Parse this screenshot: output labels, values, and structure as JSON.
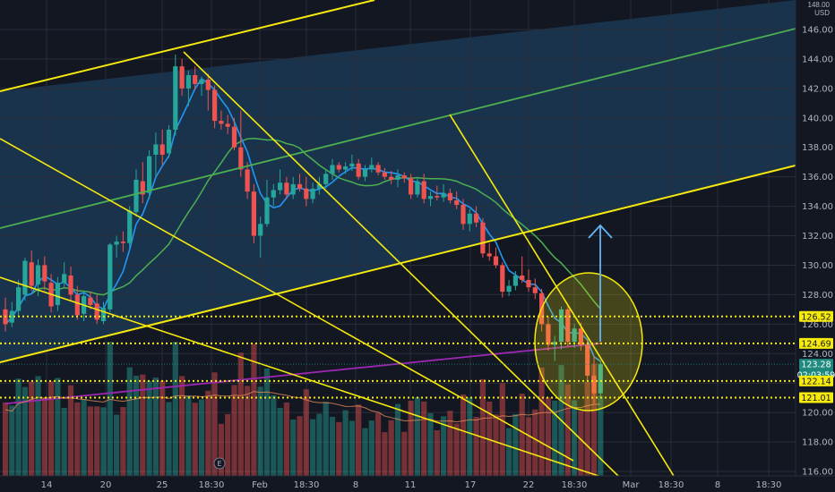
{
  "header": {
    "scale_label": "148.00",
    "currency": "USD"
  },
  "price_tags": [
    {
      "label": "126.52",
      "value": 126.52,
      "bg": "#f5e90d",
      "fg": "#131722"
    },
    {
      "label": "124.69",
      "value": 124.69,
      "bg": "#f5e90d",
      "fg": "#131722"
    },
    {
      "label": "123.28",
      "value": 123.28,
      "bg": "#1f8a80",
      "fg": "#ffffff"
    },
    {
      "label": "02:03:59",
      "value": 122.55,
      "bg": "#1f8a80",
      "fg": "#ffffff"
    },
    {
      "label": "122.14",
      "value": 122.14,
      "bg": "#f5e90d",
      "fg": "#131722"
    },
    {
      "label": "121.01",
      "value": 121.01,
      "bg": "#f5e90d",
      "fg": "#131722"
    }
  ],
  "chart_data": {
    "type": "candlestick",
    "title": "",
    "ylim": [
      116,
      148
    ],
    "y_ticks": [
      "146.00",
      "144.00",
      "142.00",
      "140.00",
      "138.00",
      "136.00",
      "134.00",
      "132.00",
      "130.00",
      "128.00",
      "126.00",
      "124.00",
      "122.00",
      "120.00",
      "118.00",
      "116.00"
    ],
    "x_ticks": [
      "14",
      "20",
      "25",
      "18:30",
      "Feb",
      "18:30",
      "8",
      "11",
      "17",
      "22",
      "18:30",
      "Mar",
      "18:30",
      "8",
      "18:30"
    ],
    "colors": {
      "up": "#26a69a",
      "down": "#ef5350",
      "ma_fast": "#2196f3",
      "ma_slow": "#4caf50",
      "ma_long": "#9c27b0",
      "annotation": "#f5e90d",
      "channel_green": "#4caf50"
    },
    "ohlc": [
      [
        127.0,
        127.8,
        125.5,
        126.0
      ],
      [
        126.1,
        127.5,
        125.8,
        126.9
      ],
      [
        126.9,
        129.0,
        126.5,
        128.5
      ],
      [
        128.0,
        130.5,
        127.6,
        130.3
      ],
      [
        130.2,
        131.0,
        128.3,
        128.6
      ],
      [
        128.7,
        130.4,
        127.9,
        130.0
      ],
      [
        130.0,
        130.6,
        128.3,
        128.9
      ],
      [
        128.8,
        129.4,
        126.8,
        127.2
      ],
      [
        127.3,
        129.2,
        126.9,
        128.8
      ],
      [
        128.8,
        130.2,
        128.5,
        129.4
      ],
      [
        129.3,
        129.9,
        127.6,
        128.0
      ],
      [
        128.0,
        128.6,
        126.3,
        126.6
      ],
      [
        126.7,
        128.2,
        126.2,
        127.9
      ],
      [
        127.8,
        128.2,
        127.0,
        127.3
      ],
      [
        127.4,
        128.0,
        126.0,
        126.3
      ],
      [
        126.2,
        127.5,
        126.0,
        127.1
      ],
      [
        127.0,
        131.5,
        126.8,
        131.4
      ],
      [
        131.4,
        132.0,
        130.5,
        131.6
      ],
      [
        131.6,
        132.3,
        130.9,
        131.5
      ],
      [
        131.5,
        134.0,
        131.2,
        133.7
      ],
      [
        133.6,
        136.5,
        133.3,
        135.8
      ],
      [
        135.7,
        137.0,
        134.2,
        134.8
      ],
      [
        134.9,
        137.8,
        134.5,
        137.4
      ],
      [
        137.5,
        139.0,
        136.0,
        138.2
      ],
      [
        138.2,
        139.2,
        136.8,
        137.5
      ],
      [
        137.6,
        139.5,
        137.3,
        139.2
      ],
      [
        139.2,
        144.3,
        138.8,
        143.5
      ],
      [
        143.5,
        144.0,
        141.5,
        142.0
      ],
      [
        142.0,
        143.2,
        140.8,
        142.9
      ],
      [
        142.9,
        143.5,
        141.9,
        142.3
      ],
      [
        142.3,
        142.8,
        141.5,
        142.6
      ],
      [
        142.6,
        143.0,
        140.5,
        141.9
      ],
      [
        141.9,
        142.2,
        139.3,
        139.8
      ],
      [
        139.8,
        140.5,
        139.2,
        139.6
      ],
      [
        139.6,
        140.2,
        138.9,
        139.4
      ],
      [
        139.4,
        140.0,
        137.8,
        138.0
      ],
      [
        138.0,
        140.5,
        136.0,
        136.5
      ],
      [
        136.5,
        137.0,
        134.5,
        135.0
      ],
      [
        135.0,
        135.5,
        131.5,
        132.0
      ],
      [
        132.0,
        133.3,
        130.5,
        132.8
      ],
      [
        132.8,
        135.8,
        132.6,
        134.6
      ],
      [
        134.6,
        135.5,
        134.0,
        135.1
      ],
      [
        135.1,
        136.5,
        134.8,
        135.6
      ],
      [
        135.6,
        136.0,
        134.5,
        134.8
      ],
      [
        134.8,
        136.0,
        134.5,
        135.5
      ],
      [
        135.5,
        136.2,
        135.0,
        135.2
      ],
      [
        135.2,
        136.0,
        134.0,
        134.5
      ],
      [
        134.5,
        135.6,
        134.2,
        135.2
      ],
      [
        135.2,
        136.0,
        134.8,
        135.5
      ],
      [
        135.5,
        136.5,
        135.2,
        136.2
      ],
      [
        136.2,
        137.2,
        135.8,
        136.8
      ],
      [
        136.8,
        137.0,
        136.3,
        136.5
      ],
      [
        136.5,
        137.0,
        136.2,
        136.7
      ],
      [
        136.7,
        137.5,
        136.4,
        136.9
      ],
      [
        136.9,
        137.2,
        135.8,
        136.0
      ],
      [
        136.0,
        136.8,
        135.7,
        136.5
      ],
      [
        136.5,
        137.3,
        136.3,
        136.8
      ],
      [
        136.8,
        137.0,
        136.1,
        136.3
      ],
      [
        136.3,
        136.6,
        135.8,
        136.0
      ],
      [
        136.0,
        136.4,
        135.5,
        135.8
      ],
      [
        135.8,
        136.5,
        135.3,
        136.1
      ],
      [
        136.1,
        136.3,
        135.6,
        135.9
      ],
      [
        135.9,
        136.2,
        134.5,
        134.8
      ],
      [
        134.8,
        136.0,
        134.6,
        135.7
      ],
      [
        135.7,
        136.2,
        134.2,
        134.5
      ],
      [
        134.5,
        135.0,
        134.0,
        134.7
      ],
      [
        134.7,
        135.4,
        134.4,
        134.6
      ],
      [
        134.6,
        135.5,
        134.3,
        134.9
      ],
      [
        134.9,
        135.2,
        134.2,
        134.4
      ],
      [
        134.4,
        135.0,
        133.8,
        134.1
      ],
      [
        134.1,
        134.5,
        132.4,
        132.8
      ],
      [
        132.8,
        133.8,
        132.3,
        133.5
      ],
      [
        133.5,
        134.0,
        132.6,
        132.9
      ],
      [
        132.9,
        133.2,
        130.5,
        130.8
      ],
      [
        130.8,
        131.5,
        130.3,
        130.6
      ],
      [
        130.6,
        131.2,
        129.8,
        130.0
      ],
      [
        130.0,
        130.2,
        127.8,
        128.2
      ],
      [
        128.2,
        129.0,
        127.9,
        128.6
      ],
      [
        128.6,
        129.6,
        128.3,
        129.3
      ],
      [
        129.3,
        130.6,
        128.8,
        129.0
      ],
      [
        129.0,
        129.7,
        128.2,
        128.5
      ],
      [
        128.5,
        129.1,
        127.7,
        128.1
      ],
      [
        128.1,
        128.4,
        125.5,
        126.0
      ],
      [
        126.0,
        126.5,
        124.2,
        124.6
      ],
      [
        124.6,
        125.2,
        123.5,
        124.8
      ],
      [
        124.8,
        127.2,
        124.3,
        127.0
      ],
      [
        127.0,
        127.3,
        124.5,
        124.8
      ],
      [
        124.8,
        126.0,
        124.4,
        125.7
      ],
      [
        125.7,
        126.1,
        124.2,
        124.6
      ],
      [
        124.6,
        125.0,
        122.2,
        122.5
      ],
      [
        122.5,
        123.8,
        120.6,
        121.3
      ],
      [
        121.3,
        123.5,
        121.0,
        123.3
      ]
    ]
  }
}
